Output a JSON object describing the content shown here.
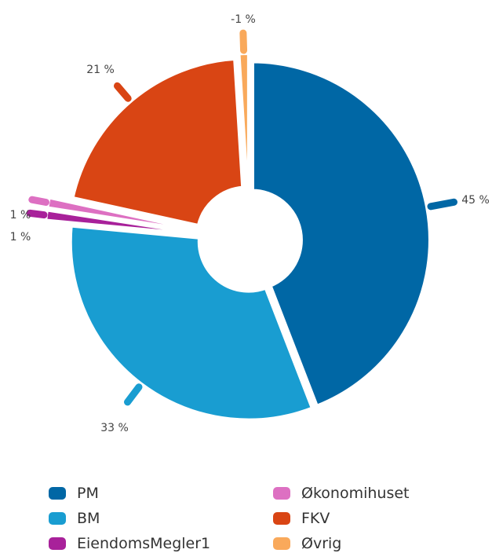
{
  "chart_data": {
    "type": "pie",
    "style": "donut-exploded",
    "slices": [
      {
        "name": "PM",
        "value": 45,
        "label": "45 %",
        "color": "#0067a5"
      },
      {
        "name": "BM",
        "value": 33,
        "label": "33 %",
        "color": "#199dd1"
      },
      {
        "name": "EiendomsMegler1",
        "value": 1,
        "label": "1 %",
        "color": "#a8219a"
      },
      {
        "name": "Økonomihuset",
        "value": 1,
        "label": "1 %",
        "color": "#dd70c2"
      },
      {
        "name": "FKV",
        "value": 21,
        "label": "21 %",
        "color": "#d94514"
      },
      {
        "name": "Øvrig",
        "value": -1,
        "label": "-1 %",
        "color": "#f9a95b"
      }
    ],
    "legend_position": "bottom",
    "legend_columns": [
      [
        "PM",
        "BM",
        "EiendomsMegler1"
      ],
      [
        "Økonomihuset",
        "FKV",
        "Øvrig"
      ]
    ]
  }
}
